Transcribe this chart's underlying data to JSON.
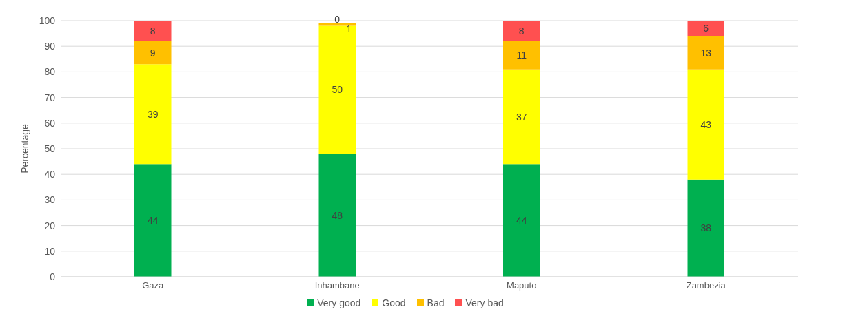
{
  "chart_data": {
    "type": "bar",
    "stacked": true,
    "ylabel": "Percentage",
    "categories": [
      "Gaza",
      "Inhambane",
      "Maputo",
      "Zambezia"
    ],
    "series": [
      {
        "name": "Very good",
        "color": "#00b050",
        "values": [
          44,
          48,
          44,
          38
        ]
      },
      {
        "name": "Good",
        "color": "#ffff00",
        "values": [
          39,
          50,
          37,
          43
        ]
      },
      {
        "name": "Bad",
        "color": "#ffc000",
        "values": [
          9,
          1,
          11,
          13
        ]
      },
      {
        "name": "Very bad",
        "color": "#ff5050",
        "values": [
          8,
          0,
          8,
          6
        ]
      }
    ],
    "ylim": [
      0,
      100
    ],
    "yticks": [
      0,
      10,
      20,
      30,
      40,
      50,
      60,
      70,
      80,
      90,
      100
    ],
    "grid": "y",
    "legend": "bottom",
    "data_labels": true
  }
}
